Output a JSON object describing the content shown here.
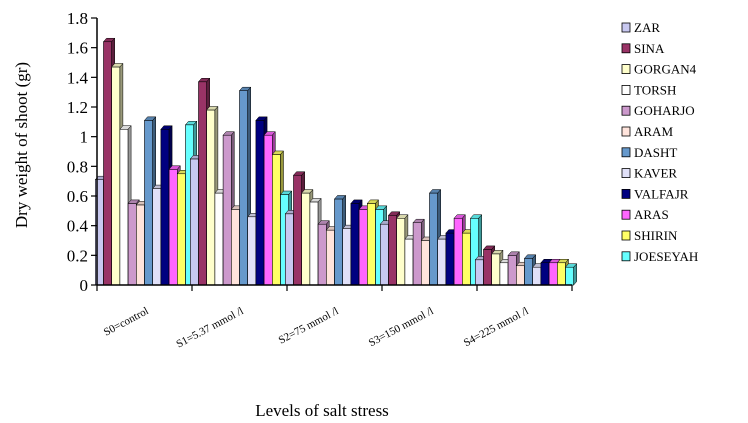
{
  "chart_data": {
    "type": "bar",
    "title": "",
    "xlabel": "Levels of salt stress",
    "ylabel": "Dry weight of shoot (gr)",
    "ylim": [
      0,
      1.8
    ],
    "yticks": [
      "0",
      "0.2",
      "0.4",
      "0.6",
      "0.8",
      "1",
      "1.2",
      "1.4",
      "1.6",
      "1.8"
    ],
    "grid": false,
    "legend_position": "right",
    "style": "3d-bars",
    "categories": [
      "S0=control",
      "S1=5.37 mmol /l",
      "S2=75 mmol /l",
      "S3=150 mmol /l",
      "S4=225 mmol /l"
    ],
    "series": [
      {
        "name": "ZAR",
        "color": "#c8c8f0",
        "values": [
          0.71,
          0.85,
          0.48,
          0.41,
          0.17
        ]
      },
      {
        "name": "SINA",
        "color": "#993366",
        "values": [
          1.64,
          1.37,
          0.74,
          0.47,
          0.24
        ]
      },
      {
        "name": "GORGAN4",
        "color": "#ffffcc",
        "values": [
          1.47,
          1.18,
          0.62,
          0.45,
          0.21
        ]
      },
      {
        "name": "TORSH",
        "color": "#ffffff",
        "values": [
          1.05,
          0.62,
          0.56,
          0.31,
          0.15
        ]
      },
      {
        "name": "GOHARJO",
        "color": "#cc99cc",
        "values": [
          0.55,
          1.01,
          0.41,
          0.42,
          0.2
        ]
      },
      {
        "name": "ARAM",
        "color": "#ffe4dc",
        "values": [
          0.54,
          0.51,
          0.37,
          0.3,
          0.13
        ]
      },
      {
        "name": "DASHT",
        "color": "#6699cc",
        "values": [
          1.11,
          1.31,
          0.58,
          0.62,
          0.18
        ]
      },
      {
        "name": "KAVER",
        "color": "#e0e0f8",
        "values": [
          0.65,
          0.46,
          0.38,
          0.31,
          0.12
        ]
      },
      {
        "name": "VALFAJR",
        "color": "#000080",
        "values": [
          1.05,
          1.11,
          0.55,
          0.35,
          0.15
        ]
      },
      {
        "name": "ARAS",
        "color": "#ff66ff",
        "values": [
          0.78,
          1.01,
          0.51,
          0.45,
          0.15
        ]
      },
      {
        "name": "SHIRIN",
        "color": "#ffff66",
        "values": [
          0.75,
          0.88,
          0.55,
          0.35,
          0.15
        ]
      },
      {
        "name": "JOESEYAH",
        "color": "#66ffff",
        "values": [
          1.08,
          0.61,
          0.51,
          0.45,
          0.12
        ]
      }
    ]
  }
}
